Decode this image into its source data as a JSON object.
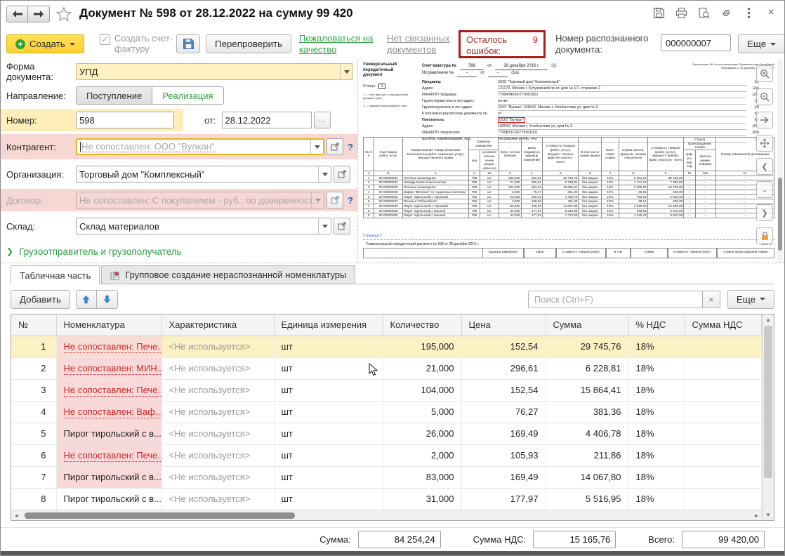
{
  "window_title": "Документ № 598 от 28.12.2022 на сумму 99 420",
  "toolbar": {
    "create_button": "Создать",
    "create_invoice_checkbox": "Создать счет-фактуру",
    "recheck_button": "Перепроверить",
    "complain_link": "Пожаловаться на качество",
    "no_related_link": "Нет связанных документов",
    "errors_left_label": "Осталось ошибок:",
    "errors_left_count": "9",
    "recognized_number_label": "Номер распознанного документа:",
    "recognized_number_value": "000000007",
    "more_button": "Еще"
  },
  "form": {
    "doc_form_label": "Форма документа:",
    "doc_form_value": "УПД",
    "direction_label": "Направление:",
    "direction_in": "Поступление",
    "direction_out": "Реализация",
    "number_label": "Номер:",
    "number_value": "598",
    "date_label": "от:",
    "date_value": "28.12.2022",
    "date_more": "...",
    "counterparty_label": "Контрагент:",
    "counterparty_value": "Не сопоставлен: ООО \"Вулкан\"",
    "organization_label": "Организация:",
    "organization_value": "Торговый дом \"Комплексный\"",
    "contract_label": "Договор:",
    "contract_value": "Не сопоставлен: С покупателем - руб.; по доверенност...",
    "warehouse_label": "Склад:",
    "warehouse_value": "Склад материалов",
    "shipper_link": "Грузоотправитель и грузополучатель",
    "help_mark": "?"
  },
  "preview": {
    "doc_type_label": "Универсальный передаточный документ",
    "status_label": "Статус:",
    "status_value": "1",
    "status_note1": "1 — счет-фактура и передаточный документ (акт)",
    "status_note2": "2 — передаточный документ (акт)",
    "appendix_note": "Приложение № 1 к постановлению Правительства Российской Федерации от 26 декабря 2011 г. № 1137",
    "invoice_label": "Счет-фактура №",
    "invoice_number": "598",
    "from_label": "от",
    "invoice_date": "28 декабря 2016 г.",
    "invoice_ref": "(1)",
    "correction_label": "Исправление №",
    "correction_number": "--",
    "correction_date": "--",
    "correction_ref": "(1а)",
    "fields": [
      {
        "label": "Продавец:",
        "value": "ООО \"Торговый дом \"Комплексный\"",
        "ref": "(2)",
        "bold": true
      },
      {
        "label": "Адрес:",
        "value": "121170, Москва г, Кутузовский пр-кт, дом № 1/7, строение 2",
        "ref": "(2а)"
      },
      {
        "label": "ИНН/КПП продавца:",
        "value": "7799434926/779901001",
        "ref": "(2б)"
      },
      {
        "label": "Грузоотправитель и его адрес:",
        "value": "он же",
        "ref": "(3)"
      },
      {
        "label": "Грузополучатель и его адрес:",
        "value": "ООО \"Вулкан\",109542, Москва г, Хлобыстова ул, дом № 3",
        "ref": "(4)"
      },
      {
        "label": "К платежно-расчетному документу №",
        "value": "от",
        "ref": "(5)"
      },
      {
        "label": "Покупатель:",
        "value": "ООО \"Вулкан\"",
        "ref": "(6)",
        "bold": true,
        "highlight": true
      },
      {
        "label": "Адрес:",
        "value": "109542, Москва г, Хлобыстова ул, дом № 3",
        "ref": "(6а)"
      },
      {
        "label": "ИНН/КПП покупателя:",
        "value": "7799831120/779901001",
        "ref": "(6б)"
      },
      {
        "label": "Валюта: наименование, код",
        "value": "Российский рубль, 643",
        "ref": "(7)"
      }
    ],
    "grid": {
      "group_unit": "Единица измерения",
      "group_country": "Страна происхождения товара",
      "columns": [
        "№ п/п",
        "Код товара/ работ, услуг",
        "Наименование товара (описание выполненных работ, оказанных услуг), имущественного права",
        "код",
        "условное обозна- чение (нацио- нальное)",
        "Коли- чество (объем)",
        "Цена (тариф) за единицу измерения",
        "Стоимость товаров (работ, услуг), имущест- венных прав без налога - всего",
        "В том числе сумма акциза",
        "Нало- говая ставка",
        "Сумма налога, предъяв- ляемая покупателю",
        "Стоимость товаров (работ, услуг), имущест- венных прав с налогом - всего",
        "циф- ро- вой код",
        "краткое наиме- нование",
        "Номер таможенной декларации"
      ],
      "letters": [
        "А",
        "Б",
        "1",
        "2",
        "2а",
        "3",
        "4",
        "5",
        "6",
        "7",
        "8",
        "9",
        "10",
        "10а",
        "11"
      ],
      "rows": [
        [
          "1",
          "00-00000032",
          "Печенье шоколадное",
          "796",
          "шт",
          "195,000",
          "152,54",
          "29 745,76",
          "без акциза",
          "18%",
          "5 354,24",
          "35 100,00",
          "--",
          "--",
          "--"
        ],
        [
          "2",
          "00-00000034",
          "Минирулетики классические",
          "796",
          "шт",
          "21,000",
          "296,61",
          "6 228,81",
          "без акциза",
          "18%",
          "1 121,19",
          "7 350,00",
          "--",
          "--",
          "--"
        ],
        [
          "3",
          "00-00000032",
          "Печенье шоколадное",
          "796",
          "шт",
          "104,000",
          "152,54",
          "15 864,41",
          "без акциза",
          "18%",
          "2 855,59",
          "18 720,00",
          "--",
          "--",
          "--"
        ],
        [
          "4",
          "00-00000040",
          "Вафли \"Венские\" со сгущенным молоком",
          "796",
          "шт",
          "5,000",
          "76,27",
          "381,36",
          "без акциза",
          "18%",
          "68,64",
          "450,00",
          "--",
          "--",
          "--"
        ],
        [
          "5",
          "00-00000033",
          "Пирог тирольский с черникой",
          "796",
          "шт",
          "26,000",
          "169,49",
          "4 406,78",
          "без акциза",
          "18%",
          "793,22",
          "5 200,00",
          "--",
          "--",
          "--"
        ],
        [
          "6",
          "00-00000037",
          "Печенье \"Юбилейное\"",
          "796",
          "шт",
          "2,000",
          "105,93",
          "211,86",
          "без акциза",
          "18%",
          "38,14",
          "250,00",
          "--",
          "--",
          "--"
        ],
        [
          "7",
          "00-00000033",
          "Пирог тирольский с черникой",
          "796",
          "шт",
          "83,000",
          "169,49",
          "14 067,80",
          "без акциза",
          "18%",
          "2 532,20",
          "16 600,00",
          "--",
          "--",
          "--"
        ],
        [
          "8",
          "00-00000035",
          "Пирог тирольский с вишней",
          "796",
          "шт",
          "31,000",
          "177,97",
          "5 516,95",
          "без акциза",
          "18%",
          "993,05",
          "6 510,00",
          "--",
          "--",
          "--"
        ],
        [
          "9",
          "00-00000035",
          "Пирог тирольский с вишней",
          "796",
          "шт",
          "42,000",
          "177,97",
          "7 474,58",
          "без акциза",
          "18%",
          "1 345,42",
          "8 820,00",
          "--",
          "--",
          "--"
        ]
      ]
    },
    "page2_link": "Страница 2",
    "page2_header": "Универсальный передаточный документ № 598 от 28 декабря 2016 г.",
    "page2_sheet": "Лист 2",
    "page2_cols": [
      "Единица измерения",
      "Цена",
      "Стоимость товаров (работ,",
      "В том",
      "Сумма",
      "Стоимость товаров (работ,",
      "Страна происхождения товара"
    ]
  },
  "tabs": {
    "tab1": "Табличная часть",
    "tab2": "Групповое создание нераспознанной номенклатуры"
  },
  "table_toolbar": {
    "add_button": "Добавить",
    "search_placeholder": "Поиск (Ctrl+F)",
    "clear_mark": "×",
    "more_button": "Еще"
  },
  "items_table": {
    "columns": [
      "№",
      "Номенклатура",
      "Характеристика",
      "Единица измерения",
      "Количество",
      "Цена",
      "Сумма",
      "% НДС",
      "Сумма НДС"
    ],
    "rows": [
      {
        "num": "1",
        "name": "Не сопоставлен: Пече...",
        "red": true,
        "pink": true,
        "selected": true,
        "characteristic": "<Не используется>",
        "unit": "шт",
        "qty": "195,000",
        "price": "152,54",
        "sum": "29 745,76",
        "vat": "18%",
        "vat_sum": ""
      },
      {
        "num": "2",
        "name": "Не сопоставлен: МИН...",
        "red": true,
        "pink": true,
        "characteristic": "<Не используется>",
        "unit": "шт",
        "qty": "21,000",
        "price": "296,61",
        "sum": "6 228,81",
        "vat": "18%",
        "vat_sum": ""
      },
      {
        "num": "3",
        "name": "Не сопоставлен: Пече...",
        "red": true,
        "pink": true,
        "characteristic": "<Не используется>",
        "unit": "шт",
        "qty": "104,000",
        "price": "152,54",
        "sum": "15 864,41",
        "vat": "18%",
        "vat_sum": ""
      },
      {
        "num": "4",
        "name": "Не сопоставлен: Ваф...",
        "red": true,
        "pink": true,
        "characteristic": "<Не используется>",
        "unit": "шт",
        "qty": "5,000",
        "price": "76,27",
        "sum": "381,36",
        "vat": "18%",
        "vat_sum": ""
      },
      {
        "num": "5",
        "name": "Пирог тирольский с в...",
        "pink": true,
        "characteristic": "<Не используется>",
        "unit": "шт",
        "qty": "26,000",
        "price": "169,49",
        "sum": "4 406,78",
        "vat": "18%",
        "vat_sum": ""
      },
      {
        "num": "6",
        "name": "Не сопоставлен: Пече...",
        "red": true,
        "pink": true,
        "characteristic": "<Не используется>",
        "unit": "шт",
        "qty": "2,000",
        "price": "105,93",
        "sum": "211,86",
        "vat": "18%",
        "vat_sum": ""
      },
      {
        "num": "7",
        "name": "Пирог тирольский с в...",
        "pink": true,
        "characteristic": "<Не используется>",
        "unit": "шт",
        "qty": "83,000",
        "price": "169,49",
        "sum": "14 067,80",
        "vat": "18%",
        "vat_sum": ""
      },
      {
        "num": "8",
        "name": "Пирог тирольский с в...",
        "characteristic": "<Не используется>",
        "unit": "шт",
        "qty": "31,000",
        "price": "177,97",
        "sum": "5 516,95",
        "vat": "18%",
        "vat_sum": ""
      }
    ]
  },
  "totals": {
    "sum_label": "Сумма:",
    "sum_value": "84 254,24",
    "vat_label": "Сумма НДС:",
    "vat_value": "15 165,76",
    "total_label": "Всего:",
    "total_value": "99 420,00"
  },
  "colors": {
    "accent_yellow": "#feeeba",
    "error_red": "#a6201c",
    "link_green": "#2f9e44",
    "unmatched_red": "#cd2626",
    "pink_highlight": "#f8d8d8"
  }
}
